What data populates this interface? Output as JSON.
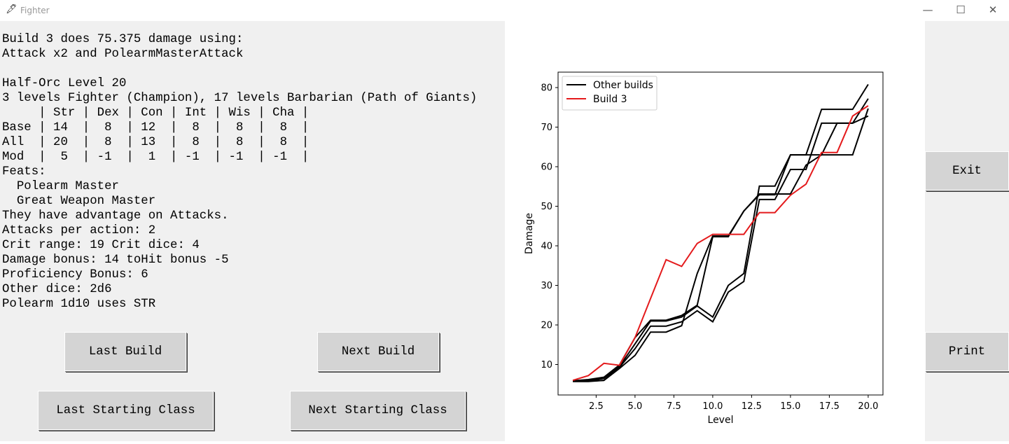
{
  "window": {
    "title": "Fighter",
    "icon": "feather-icon",
    "controls": [
      "minimize-icon",
      "maximize-icon",
      "close-icon"
    ]
  },
  "build_info": {
    "text": "Build 3 does 75.375 damage using:\nAttack x2 and PolearmMasterAttack\n\nHalf-Orc Level 20\n3 levels Fighter (Champion), 17 levels Barbarian (Path of Giants)\n     | Str | Dex | Con | Int | Wis | Cha |\nBase | 14  |  8  | 12  |  8  |  8  |  8  |\nAll  | 20  |  8  | 13  |  8  |  8  |  8  |\nMod  |  5  | -1  |  1  | -1  | -1  | -1  |\nFeats:\n  Polearm Master\n  Great Weapon Master\nThey have advantage on Attacks.\nAttacks per action: 2\nCrit range: 19 Crit dice: 4\nDamage bonus: 14 toHit bonus -5\nProficiency Bonus: 6\nOther dice: 2d6\nPolearm 1d10 uses STR"
  },
  "buttons": {
    "last_build": "Last Build",
    "next_build": "Next Build",
    "last_starting_class": "Last Starting Class",
    "next_starting_class": "Next Starting Class",
    "exit": "Exit",
    "print": "Print"
  },
  "chart_data": {
    "type": "line",
    "xlabel": "Level",
    "ylabel": "Damage",
    "xlim": [
      0.05,
      20.95
    ],
    "ylim": [
      2.3,
      83.9
    ],
    "xticks": [
      2.5,
      5.0,
      7.5,
      10.0,
      12.5,
      15.0,
      17.5,
      20.0
    ],
    "yticks": [
      10,
      20,
      30,
      40,
      50,
      60,
      70,
      80
    ],
    "legend_position": "top-left",
    "legend": [
      "Other builds",
      "Build 3"
    ],
    "x": [
      1,
      2,
      3,
      4,
      5,
      6,
      7,
      8,
      9,
      10,
      11,
      12,
      13,
      14,
      15,
      16,
      17,
      18,
      19,
      20
    ],
    "series": [
      {
        "name": "Other builds",
        "color": "#000000",
        "values": [
          5.9,
          5.9,
          6.5,
          9.5,
          15.2,
          21.0,
          21.0,
          22.0,
          24.8,
          22.0,
          30.0,
          33.0,
          55.1,
          55.1,
          63.0,
          63.0,
          74.5,
          74.5,
          74.5,
          80.8
        ]
      },
      {
        "name": "Other builds",
        "color": "#000000",
        "values": [
          5.8,
          5.8,
          6.0,
          9.3,
          14.0,
          19.7,
          19.7,
          20.8,
          23.6,
          20.8,
          28.3,
          31.0,
          51.7,
          51.7,
          59.3,
          59.3,
          71.0,
          71.0,
          71.0,
          77.2
        ]
      },
      {
        "name": "Other builds",
        "color": "#000000",
        "values": [
          5.7,
          5.7,
          6.0,
          9.0,
          12.3,
          18.2,
          18.2,
          19.8,
          33.0,
          42.5,
          42.5,
          48.8,
          53.1,
          53.1,
          53.1,
          60.4,
          63.0,
          63.0,
          63.0,
          74.7
        ]
      },
      {
        "name": "Other builds",
        "color": "#000000",
        "values": [
          5.9,
          6.2,
          6.8,
          9.9,
          16.8,
          21.2,
          21.2,
          22.4,
          25.0,
          42.3,
          42.3,
          48.8,
          52.9,
          52.9,
          63.0,
          63.0,
          63.0,
          71.0,
          71.0,
          72.8
        ]
      },
      {
        "name": "Build 3",
        "color": "#e41a1c",
        "values": [
          6.0,
          7.2,
          10.3,
          9.8,
          16.8,
          26.7,
          36.5,
          34.8,
          40.6,
          42.9,
          42.9,
          42.9,
          48.4,
          48.4,
          52.8,
          55.6,
          63.6,
          63.6,
          72.8,
          75.4
        ]
      }
    ]
  }
}
